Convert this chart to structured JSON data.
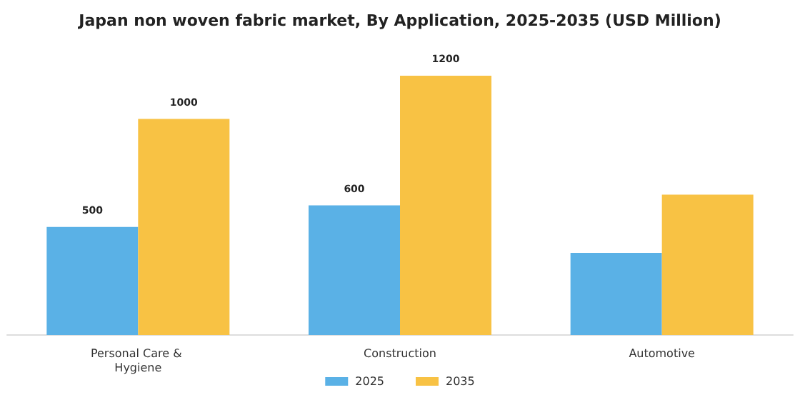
{
  "chart_data": {
    "type": "bar",
    "title": "Japan non woven fabric market, By Application, 2025-2035 (USD Million)",
    "categories": [
      "Personal Care & Hygiene",
      "Construction",
      "Automotive"
    ],
    "series": [
      {
        "name": "2025",
        "color": "#5ab1e6",
        "values": [
          500,
          600,
          380
        ],
        "value_labels": [
          "500",
          "600",
          null
        ]
      },
      {
        "name": "2035",
        "color": "#f8c244",
        "values": [
          1000,
          1200,
          650
        ],
        "value_labels": [
          "1000",
          "1200",
          null
        ]
      }
    ],
    "legend": "bottom",
    "tick_labels": "x"
  }
}
